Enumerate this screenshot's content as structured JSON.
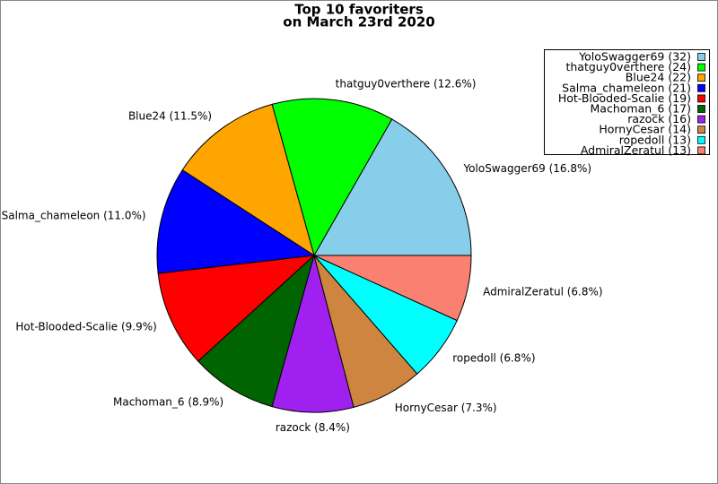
{
  "chart_data": {
    "type": "pie",
    "title": "Top 10 favoriters",
    "subtitle": "on March 23rd 2020",
    "categories": [
      "YoloSwagger69",
      "thatguy0verthere",
      "Blue24",
      "Salma_chameleon",
      "Hot-Blooded-Scalie",
      "Machoman_6",
      "razock",
      "HornyCesar",
      "ropedoll",
      "AdmiralZeratul"
    ],
    "values": [
      32,
      24,
      22,
      21,
      19,
      17,
      16,
      14,
      13,
      13
    ],
    "value_labels": [
      "YoloSwagger69 (32)",
      "thatguy0verthere (24)",
      "Blue24 (22)",
      "Salma_chameleon (21)",
      "Hot-Blooded-Scalie (19)",
      "Machoman_6 (17)",
      "razock (16)",
      "HornyCesar (14)",
      "ropedoll (13)",
      "AdmiralZeratul (13)"
    ],
    "slice_labels": [
      "YoloSwagger69 (16.8%)",
      "thatguy0verthere (12.6%)",
      "Blue24 (11.5%)",
      "Salma_chameleon (11.0%)",
      "Hot-Blooded-Scalie (9.9%)",
      "Machoman_6 (8.9%)",
      "razock (8.4%)",
      "HornyCesar (7.3%)",
      "ropedoll (6.8%)",
      "AdmiralZeratul (6.8%)"
    ],
    "colors": [
      "#87ceeb",
      "#00ff00",
      "#ffa500",
      "#0000ff",
      "#ff0000",
      "#006400",
      "#a020f0",
      "#cd853f",
      "#00ffff",
      "#fa8072"
    ],
    "legend": "upper right"
  }
}
